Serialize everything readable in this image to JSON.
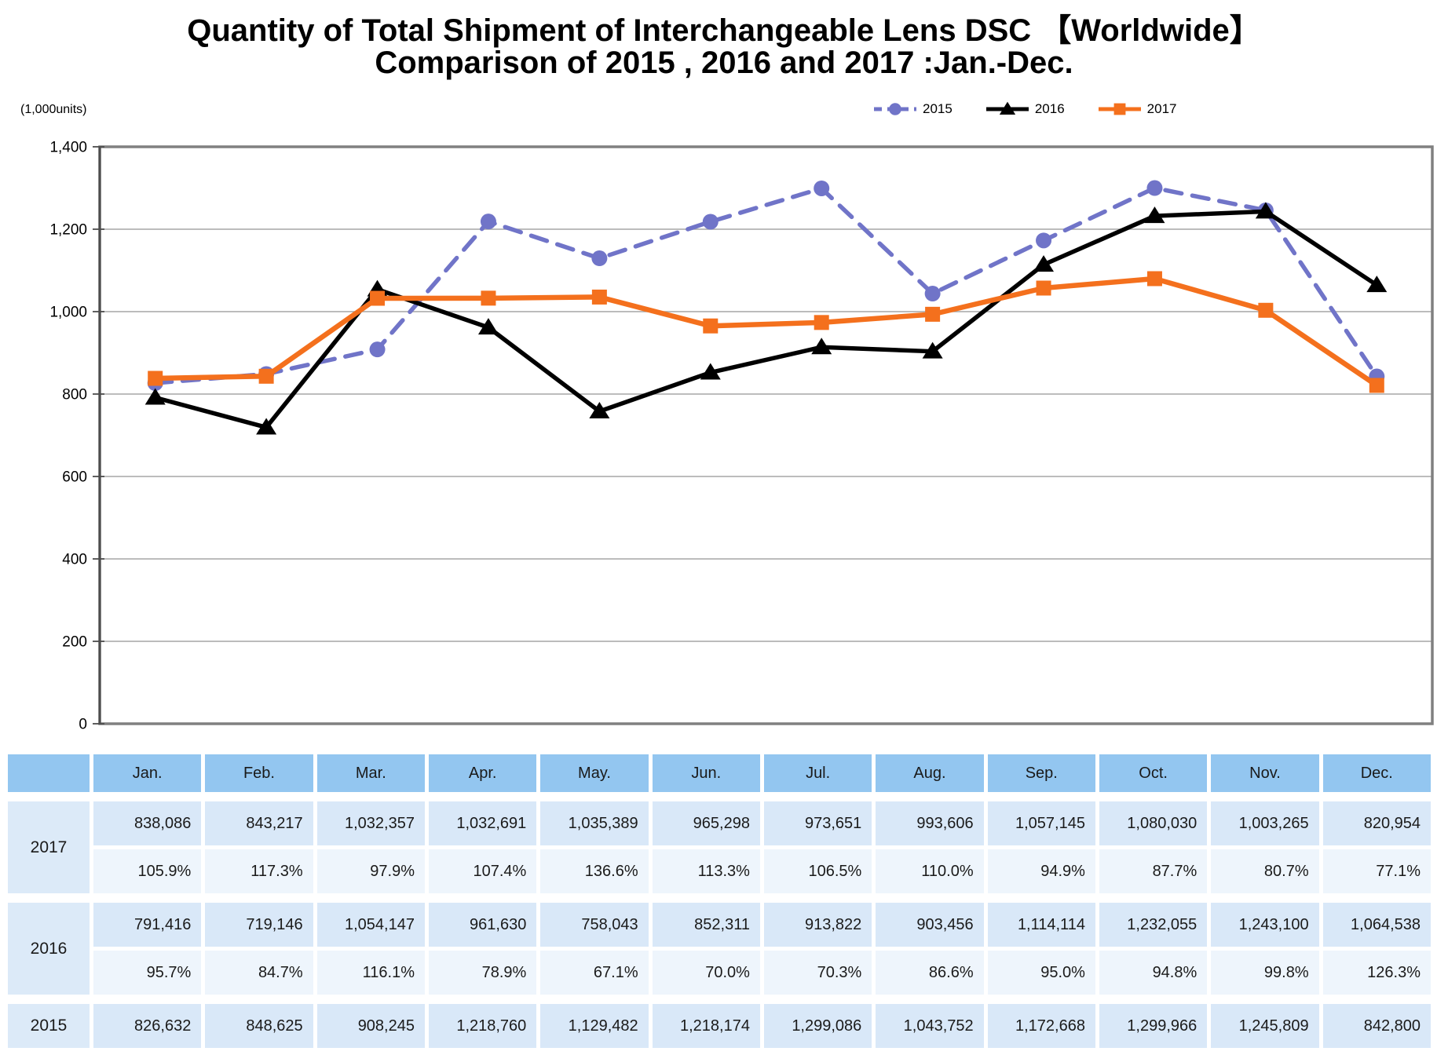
{
  "title": {
    "line1": "Quantity of Total Shipment of Interchangeable Lens DSC 【Worldwide】",
    "line2": "Comparison of 2015 , 2016 and 2017 :Jan.-Dec."
  },
  "chart_data": {
    "type": "line",
    "title": "Quantity of Total Shipment of Interchangeable Lens DSC (Worldwide), Comparison of 2015, 2016 and 2017: Jan.-Dec.",
    "ylabel": "(1,000units)",
    "xlabel": "",
    "ylim": [
      0,
      1400
    ],
    "ytick_step": 200,
    "ytick_labels": [
      "0",
      "200",
      "400",
      "600",
      "800",
      "1,000",
      "1,200",
      "1,400"
    ],
    "grid": true,
    "legend_position": "top-right",
    "categories": [
      "Jan.",
      "Feb.",
      "Mar.",
      "Apr.",
      "May.",
      "Jun.",
      "Jul.",
      "Aug.",
      "Sep.",
      "Oct.",
      "Nov.",
      "Dec."
    ],
    "series": [
      {
        "name": "2015",
        "color": "#7074C8",
        "marker": "circle",
        "dashed": true,
        "values": [
          826.632,
          848.625,
          908.245,
          1218.76,
          1129.482,
          1218.174,
          1299.086,
          1043.752,
          1172.668,
          1299.966,
          1245.809,
          842.8
        ]
      },
      {
        "name": "2016",
        "color": "#000000",
        "marker": "triangle",
        "dashed": false,
        "values": [
          791.416,
          719.146,
          1054.147,
          961.63,
          758.043,
          852.311,
          913.822,
          903.456,
          1114.114,
          1232.055,
          1243.1,
          1064.538
        ]
      },
      {
        "name": "2017",
        "color": "#F4701D",
        "marker": "square",
        "dashed": false,
        "values": [
          838.086,
          843.217,
          1032.357,
          1032.691,
          1035.389,
          965.298,
          973.651,
          993.606,
          1057.145,
          1080.03,
          1003.265,
          820.954
        ]
      }
    ]
  },
  "table": {
    "months": [
      "Jan.",
      "Feb.",
      "Mar.",
      "Apr.",
      "May.",
      "Jun.",
      "Jul.",
      "Aug.",
      "Sep.",
      "Oct.",
      "Nov.",
      "Dec."
    ],
    "rows": [
      {
        "year": "2017",
        "values": [
          "838,086",
          "843,217",
          "1,032,357",
          "1,032,691",
          "1,035,389",
          "965,298",
          "973,651",
          "993,606",
          "1,057,145",
          "1,080,030",
          "1,003,265",
          "820,954"
        ],
        "percents": [
          "105.9%",
          "117.3%",
          "97.9%",
          "107.4%",
          "136.6%",
          "113.3%",
          "106.5%",
          "110.0%",
          "94.9%",
          "87.7%",
          "80.7%",
          "77.1%"
        ]
      },
      {
        "year": "2016",
        "values": [
          "791,416",
          "719,146",
          "1,054,147",
          "961,630",
          "758,043",
          "852,311",
          "913,822",
          "903,456",
          "1,114,114",
          "1,232,055",
          "1,243,100",
          "1,064,538"
        ],
        "percents": [
          "95.7%",
          "84.7%",
          "116.1%",
          "78.9%",
          "67.1%",
          "70.0%",
          "70.3%",
          "86.6%",
          "95.0%",
          "94.8%",
          "99.8%",
          "126.3%"
        ]
      },
      {
        "year": "2015",
        "values": [
          "826,632",
          "848,625",
          "908,245",
          "1,218,760",
          "1,129,482",
          "1,218,174",
          "1,299,086",
          "1,043,752",
          "1,172,668",
          "1,299,966",
          "1,245,809",
          "842,800"
        ]
      }
    ]
  },
  "colors": {
    "header_blue": "#93C6F0",
    "value_cell": "#D9E8F8",
    "percent_cell": "#EEF5FC",
    "year_cell": "#DCEAF8",
    "plot_border": "#808080",
    "gridline": "#A6A6A6",
    "axis": "#4D4D4D"
  }
}
